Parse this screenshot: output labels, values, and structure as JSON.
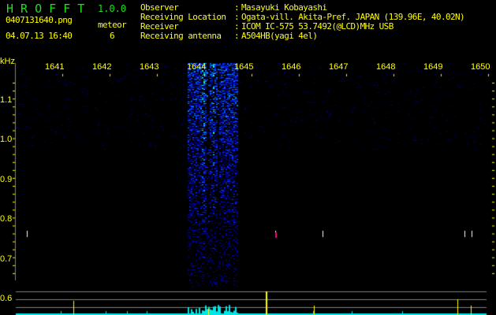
{
  "app": {
    "name": "H R O F F T",
    "version": "1.0.0"
  },
  "file": {
    "name": "0407131640.png",
    "datetime": "04.07.13 16:40"
  },
  "meteor": {
    "label": "meteor",
    "count": "6"
  },
  "info": [
    {
      "label": "Observer",
      "sep": ":",
      "value": "Masayuki Kobayashi"
    },
    {
      "label": "Receiving Location",
      "sep": ":",
      "value": "Ogata-vill. Akita-Pref. JAPAN (139.96E, 40.02N)"
    },
    {
      "label": "Receiver",
      "sep": ":",
      "value": "ICOM IC-575 53.7492(@LCD)MHz USB"
    },
    {
      "label": "Receiving antenna",
      "sep": ":",
      "value": "A504HB(yagi 4el)"
    }
  ],
  "colors": {
    "text": "#ffff00",
    "title": "#22dd22",
    "signal": "#0000ff",
    "histogram": "#00e5e5",
    "grid": "#808080"
  },
  "chart_data": {
    "type": "heatmap",
    "ylabel": "kHz",
    "x_ticks": [
      "1641",
      "1642",
      "1643",
      "1644",
      "1645",
      "1646",
      "1647",
      "1648",
      "1649",
      "1650"
    ],
    "y_ticks": [
      "1.1",
      "1.0",
      "0.9",
      "0.8",
      "0.7",
      "0.6"
    ],
    "ylim": [
      0.56,
      1.2
    ],
    "colormap": "black-blue-cyan-yellow-red",
    "strong_echo_band_x": [
      1643.65,
      1644.7
    ],
    "meteor_pings_x": [
      1640.25,
      1645.5,
      1646.5,
      1649.5,
      1649.65
    ]
  }
}
